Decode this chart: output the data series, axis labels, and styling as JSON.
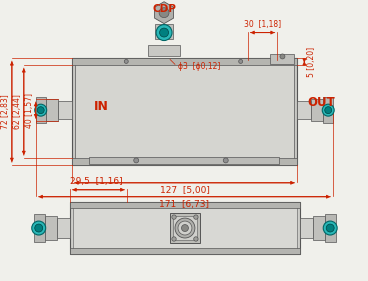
{
  "bg_color": "#f0f0eb",
  "dim_color": "#cc2200",
  "darkgray": "#555555",
  "midgray": "#888888",
  "lightgray": "#cccccc",
  "teal_dark": "#006666",
  "teal_mid": "#009999",
  "teal_inner": "#007777",
  "label_in": "IN",
  "label_out": "OUT",
  "label_cop": "CDP",
  "dim_30": "30  [1,18]",
  "dim_d3": "ϕ3  [ϕ0,12]",
  "dim_5": "5 [0,20]",
  "dim_40": "40 [1,57]",
  "dim_62": "62 [2,44]",
  "dim_72": "72 [2,83]",
  "dim_127": "127  [5,00]",
  "dim_171": "171  [6,73]",
  "dim_29": "29,5  [1,16]",
  "figsize": [
    3.68,
    2.81
  ],
  "dpi": 100
}
